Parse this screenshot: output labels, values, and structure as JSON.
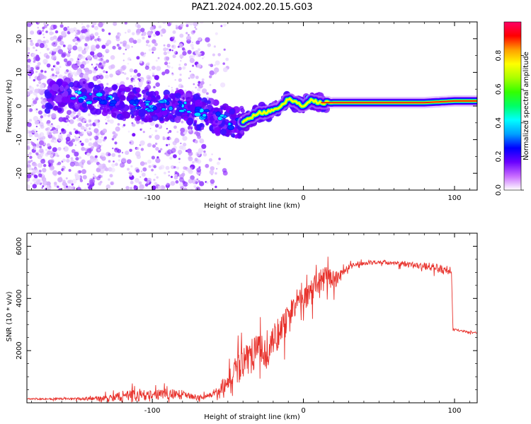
{
  "title": "PAZ1.2024.002.20.15.G03",
  "chart_data": [
    {
      "type": "heatmap",
      "xlabel": "Height of straight line (km)",
      "ylabel": "Frequency (Hz)",
      "xlim": [
        -183,
        115
      ],
      "ylim": [
        -25,
        25
      ],
      "xticks": [
        -100,
        0,
        100
      ],
      "yticks": [
        -20,
        -10,
        0,
        10,
        20
      ],
      "colorbar": {
        "label": "Normalized spectral amplitude",
        "range": [
          0,
          1
        ],
        "ticks": [
          "0.0",
          "0.2",
          "0.4",
          "0.6",
          "0.8"
        ],
        "colors": [
          "#ffffff",
          "#c86bff",
          "#6a00ff",
          "#0000ff",
          "#00a0ff",
          "#00ffff",
          "#00ff66",
          "#33ff00",
          "#aaff00",
          "#ffff00",
          "#ffa000",
          "#ff0000",
          "#ff0066"
        ]
      },
      "ridge": {
        "x": [
          -150,
          -120,
          -100,
          -80,
          -70,
          -60,
          -50,
          -40,
          -30,
          -25,
          -20,
          -15,
          -10,
          0,
          5,
          10,
          20,
          40,
          60,
          80,
          100,
          115
        ],
        "freq": [
          3,
          1,
          0,
          0,
          -2,
          -3,
          -5,
          -5,
          -2,
          -2,
          -1,
          0,
          2,
          0,
          2,
          1,
          1,
          1,
          1,
          1,
          1.5,
          1.5
        ]
      }
    },
    {
      "type": "line",
      "xlabel": "Height of straight line (km)",
      "ylabel": "SNR (10 * v/v)",
      "xlim": [
        -183,
        115
      ],
      "ylim": [
        0,
        6500
      ],
      "xticks": [
        -100,
        0,
        100
      ],
      "yticks": [
        2000,
        4000,
        6000
      ],
      "color": "#e8322c",
      "envelope": {
        "x": [
          -183,
          -150,
          -125,
          -120,
          -100,
          -90,
          -80,
          -70,
          -60,
          -50,
          -45,
          -40,
          -35,
          -30,
          -25,
          -20,
          -15,
          -10,
          -5,
          0,
          5,
          10,
          15,
          20,
          25,
          30,
          40,
          50,
          60,
          70,
          80,
          90,
          95,
          98,
          99,
          100,
          105,
          110,
          115
        ],
        "mean": [
          150,
          150,
          180,
          250,
          300,
          350,
          300,
          220,
          300,
          800,
          1200,
          1500,
          1800,
          1900,
          2000,
          2400,
          2800,
          3200,
          3800,
          4000,
          4200,
          4600,
          4800,
          4700,
          4900,
          5200,
          5350,
          5400,
          5350,
          5300,
          5250,
          5150,
          5000,
          5000,
          2800,
          2800,
          2750,
          2700,
          2680
        ],
        "noise": [
          40,
          60,
          200,
          400,
          250,
          300,
          250,
          120,
          150,
          500,
          800,
          900,
          1000,
          1000,
          1000,
          1000,
          900,
          800,
          700,
          600,
          700,
          700,
          600,
          500,
          300,
          150,
          100,
          100,
          150,
          150,
          200,
          250,
          200,
          100,
          60,
          60,
          50,
          50,
          50
        ]
      }
    }
  ]
}
